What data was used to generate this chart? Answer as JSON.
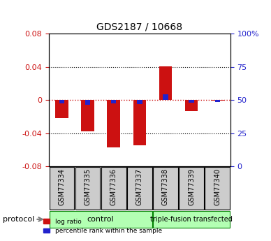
{
  "title": "GDS2187 / 10668",
  "samples": [
    "GSM77334",
    "GSM77335",
    "GSM77336",
    "GSM77337",
    "GSM77338",
    "GSM77339",
    "GSM77340"
  ],
  "log_ratio": [
    -0.022,
    -0.038,
    -0.057,
    -0.055,
    0.041,
    -0.013,
    -0.001
  ],
  "percentile_rank": [
    -0.004,
    -0.006,
    -0.004,
    -0.005,
    0.007,
    -0.003,
    -0.002
  ],
  "ylim": [
    -0.08,
    0.08
  ],
  "y2lim": [
    0,
    100
  ],
  "y_ticks": [
    -0.08,
    -0.04,
    0,
    0.04,
    0.08
  ],
  "y2_ticks": [
    0,
    25,
    50,
    75,
    100
  ],
  "y_ticklabels": [
    "-0.08",
    "-0.04",
    "0",
    "0.04",
    "0.08"
  ],
  "y2_ticklabels": [
    "0",
    "25",
    "50",
    "75",
    "100%"
  ],
  "groups": [
    {
      "label": "control",
      "start": 0,
      "end": 4,
      "color": "#90ee90"
    },
    {
      "label": "triple-fusion transfected",
      "start": 4,
      "end": 7,
      "color": "#90ee90"
    }
  ],
  "protocol_label": "protocol",
  "bar_width": 0.5,
  "log_ratio_color": "#cc1111",
  "percentile_color": "#2222cc",
  "zero_line_color": "#cc1111",
  "grid_color": "black",
  "bg_plot": "white",
  "bg_sample_box": "#cccccc",
  "bg_control": "#b3ffb3",
  "bg_triple": "#b3ffb3"
}
